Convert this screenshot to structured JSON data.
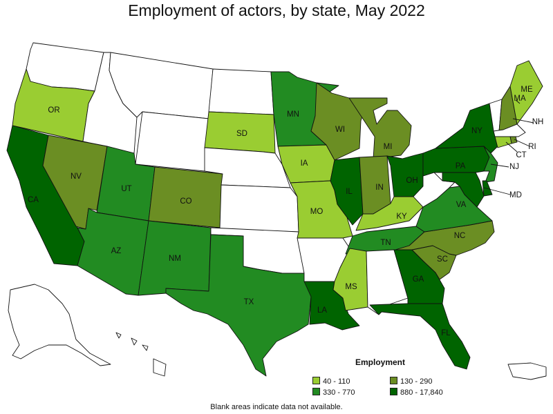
{
  "title": "Employment of actors, by state, May 2022",
  "footnote": "Blank areas indicate data not available.",
  "legend": {
    "title": "Employment",
    "items": [
      {
        "label": "40 - 110",
        "color": "#9acd32"
      },
      {
        "label": "130 - 290",
        "color": "#6b8e23"
      },
      {
        "label": "330 - 770",
        "color": "#228b22"
      },
      {
        "label": "880 - 17,840",
        "color": "#006400"
      }
    ]
  },
  "colors": {
    "blank": "#ffffff",
    "border": "#111111"
  },
  "states": {
    "WA": {
      "label": "",
      "bin": 0
    },
    "OR": {
      "label": "OR",
      "bin": 1
    },
    "CA": {
      "label": "CA",
      "bin": 4
    },
    "NV": {
      "label": "NV",
      "bin": 2
    },
    "ID": {
      "label": "",
      "bin": 0
    },
    "MT": {
      "label": "",
      "bin": 0
    },
    "WY": {
      "label": "",
      "bin": 0
    },
    "UT": {
      "label": "UT",
      "bin": 3
    },
    "AZ": {
      "label": "AZ",
      "bin": 3
    },
    "CO": {
      "label": "CO",
      "bin": 2
    },
    "NM": {
      "label": "NM",
      "bin": 3
    },
    "ND": {
      "label": "",
      "bin": 0
    },
    "SD": {
      "label": "SD",
      "bin": 1
    },
    "NE": {
      "label": "",
      "bin": 0
    },
    "KS": {
      "label": "",
      "bin": 0
    },
    "OK": {
      "label": "",
      "bin": 0
    },
    "TX": {
      "label": "TX",
      "bin": 3
    },
    "MN": {
      "label": "MN",
      "bin": 3
    },
    "IA": {
      "label": "IA",
      "bin": 1
    },
    "MO": {
      "label": "MO",
      "bin": 1
    },
    "AR": {
      "label": "",
      "bin": 0
    },
    "LA": {
      "label": "LA",
      "bin": 4
    },
    "WI": {
      "label": "WI",
      "bin": 2
    },
    "IL": {
      "label": "IL",
      "bin": 4
    },
    "MI": {
      "label": "MI",
      "bin": 2
    },
    "IN": {
      "label": "IN",
      "bin": 2
    },
    "OH": {
      "label": "OH",
      "bin": 4
    },
    "KY": {
      "label": "KY",
      "bin": 1
    },
    "TN": {
      "label": "TN",
      "bin": 3
    },
    "MS": {
      "label": "MS",
      "bin": 1
    },
    "AL": {
      "label": "",
      "bin": 0
    },
    "GA": {
      "label": "GA",
      "bin": 4
    },
    "FL": {
      "label": "FL",
      "bin": 4
    },
    "SC": {
      "label": "SC",
      "bin": 2
    },
    "NC": {
      "label": "NC",
      "bin": 2
    },
    "VA": {
      "label": "VA",
      "bin": 3
    },
    "WV": {
      "label": "",
      "bin": 0
    },
    "PA": {
      "label": "PA",
      "bin": 4
    },
    "NY": {
      "label": "NY",
      "bin": 4
    },
    "VT": {
      "label": "",
      "bin": 0
    },
    "NH": {
      "label": "NH",
      "bin": 2
    },
    "ME": {
      "label": "ME",
      "bin": 1
    },
    "MA": {
      "label": "MA",
      "bin": 0
    },
    "RI": {
      "label": "RI",
      "bin": 2
    },
    "CT": {
      "label": "CT",
      "bin": 1
    },
    "NJ": {
      "label": "NJ",
      "bin": 3
    },
    "DE": {
      "label": "",
      "bin": 4
    },
    "MD": {
      "label": "MD",
      "bin": 4
    },
    "AK": {
      "label": "",
      "bin": 0
    },
    "HI": {
      "label": "",
      "bin": 0
    },
    "PR": {
      "label": "",
      "bin": 0
    }
  }
}
